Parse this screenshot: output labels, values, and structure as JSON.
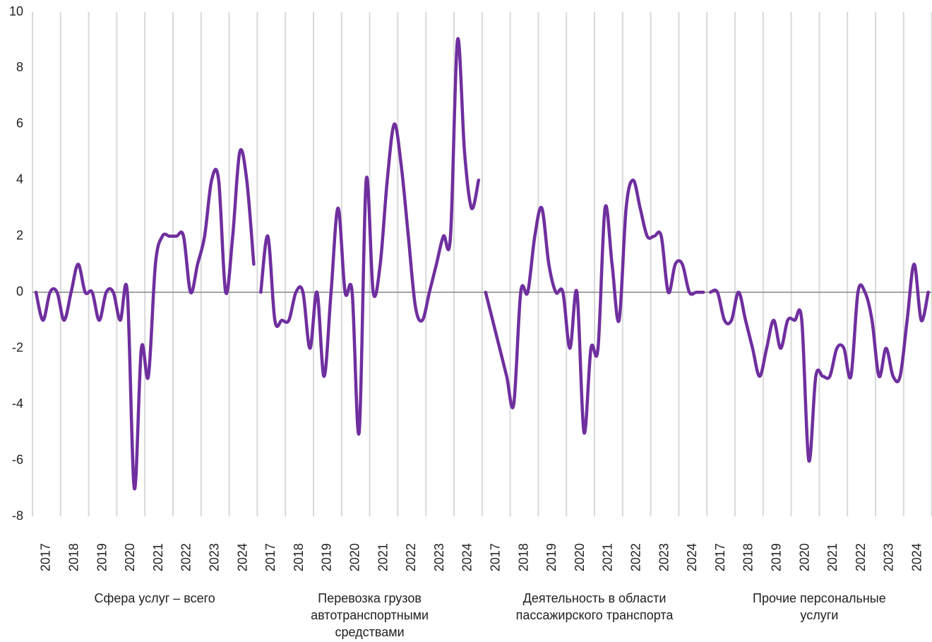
{
  "chart_data": [
    {
      "type": "line",
      "xlabel": "Сфера услуг – всего",
      "categories": [
        "2017",
        null,
        null,
        null,
        "2018",
        null,
        null,
        null,
        "2019",
        null,
        null,
        null,
        "2020",
        null,
        null,
        null,
        "2021",
        null,
        null,
        null,
        "2022",
        null,
        null,
        null,
        "2023",
        null,
        null,
        null,
        "2024",
        null,
        null,
        null
      ],
      "color": "#6f2f9f",
      "values": [
        0,
        -1,
        0,
        0,
        -1,
        0,
        1,
        0,
        0,
        -1,
        0,
        0,
        -1,
        0,
        -7,
        -2,
        -3,
        1,
        2,
        2,
        2,
        2,
        0,
        1,
        2,
        4,
        4,
        0,
        2,
        5,
        4,
        1
      ],
      "ylim": [
        -8,
        10
      ],
      "yticks": [
        -8,
        -6,
        -4,
        -2,
        0,
        2,
        4,
        6,
        8,
        10
      ]
    },
    {
      "type": "line",
      "xlabel": "Перевозка грузов автотранспортными средствами",
      "categories": [
        "2017",
        null,
        null,
        null,
        "2018",
        null,
        null,
        null,
        "2019",
        null,
        null,
        null,
        "2020",
        null,
        null,
        null,
        "2021",
        null,
        null,
        null,
        "2022",
        null,
        null,
        null,
        "2023",
        null,
        null,
        null,
        "2024",
        null,
        null,
        null
      ],
      "color": "#6f2f9f",
      "values": [
        0,
        2,
        -1,
        -1,
        -1,
        0,
        0,
        -2,
        0,
        -3,
        0,
        3,
        0,
        0,
        -5,
        4,
        0,
        1,
        4,
        6,
        4.5,
        2,
        -0.5,
        -1,
        0,
        1,
        2,
        2,
        9,
        5,
        3,
        4
      ],
      "ylim": [
        -8,
        10
      ]
    },
    {
      "type": "line",
      "xlabel": "Деятельность в области пассажирского транспорта",
      "categories": [
        "2017",
        null,
        null,
        null,
        "2018",
        null,
        null,
        null,
        "2019",
        null,
        null,
        null,
        "2020",
        null,
        null,
        null,
        "2021",
        null,
        null,
        null,
        "2022",
        null,
        null,
        null,
        "2023",
        null,
        null,
        null,
        "2024",
        null,
        null,
        null
      ],
      "color": "#6f2f9f",
      "values": [
        0,
        -1,
        -2,
        -3,
        -4,
        0,
        0,
        2,
        3,
        1,
        0,
        0,
        -2,
        0,
        -5,
        -2,
        -2,
        3,
        1,
        -1,
        3,
        4,
        3,
        2,
        2,
        2,
        0,
        1,
        1,
        0,
        0,
        0
      ],
      "ylim": [
        -8,
        10
      ]
    },
    {
      "type": "line",
      "xlabel": "Прочие персональные услуги",
      "categories": [
        "2017",
        null,
        null,
        null,
        "2018",
        null,
        null,
        null,
        "2019",
        null,
        null,
        null,
        "2020",
        null,
        null,
        null,
        "2021",
        null,
        null,
        null,
        "2022",
        null,
        null,
        null,
        "2023",
        null,
        null,
        null,
        "2024",
        null,
        null,
        null
      ],
      "color": "#6f2f9f",
      "values": [
        0,
        0,
        -1,
        -1,
        0,
        -1,
        -2,
        -3,
        -2,
        -1,
        -2,
        -1,
        -1,
        -1,
        -6,
        -3,
        -3,
        -3,
        -2,
        -2,
        -3,
        0,
        0,
        -1,
        -3,
        -2,
        -3,
        -3,
        -1,
        1,
        -1,
        0
      ],
      "ylim": [
        -8,
        10
      ]
    }
  ]
}
